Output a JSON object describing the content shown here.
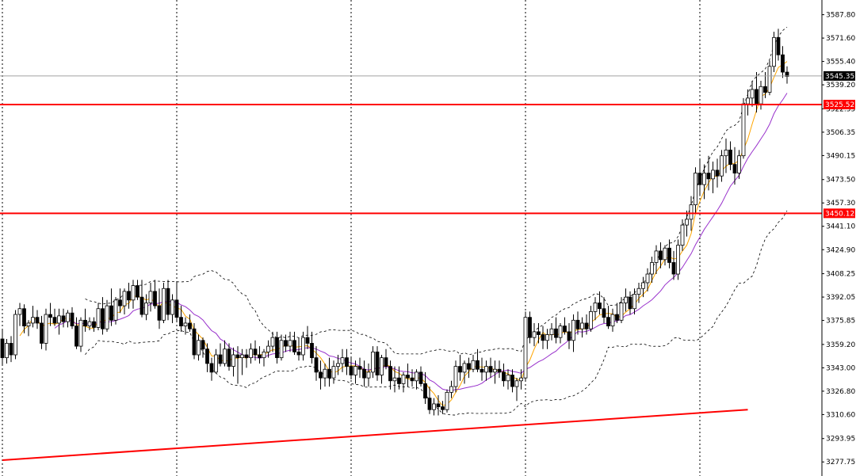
{
  "chart_data": {
    "type": "candlestick",
    "title": "",
    "xlabel": "",
    "ylabel": "",
    "ylim": [
      3268,
      3598
    ],
    "y_ticks": [
      "3587.80",
      "3571.60",
      "3555.40",
      "3539.20",
      "3522.55",
      "3506.35",
      "3490.15",
      "3473.50",
      "3457.30",
      "3441.10",
      "3424.90",
      "3408.25",
      "3392.05",
      "3375.85",
      "3359.20",
      "3343.00",
      "3326.80",
      "3310.60",
      "3293.95",
      "3277.75"
    ],
    "current_price": {
      "value": 3545.35,
      "label": "3545.35",
      "color": "#000000"
    },
    "horizontal_levels": [
      {
        "value": 3525.52,
        "label": "3525.52",
        "color": "#ff0000"
      },
      {
        "value": 3450.12,
        "label": "3450.12",
        "color": "#ff0000"
      }
    ],
    "trendline": {
      "start": {
        "bar": 0,
        "price": 3279
      },
      "end": {
        "bar": 171,
        "price": 3314
      },
      "color": "#ff0000"
    },
    "vertical_separators_at_bars": [
      0,
      40,
      80,
      120,
      160
    ],
    "colors": {
      "up": "#ffffff",
      "down": "#000000",
      "wick": "#000000",
      "ma_fast": "#ffa500",
      "ma_slow": "#9932cc",
      "bands": "#000000"
    },
    "candles_ohlc": [
      [
        3363,
        3369,
        3345,
        3350
      ],
      [
        3350,
        3363,
        3346,
        3360
      ],
      [
        3360,
        3365,
        3347,
        3352
      ],
      [
        3352,
        3383,
        3349,
        3380
      ],
      [
        3380,
        3388,
        3372,
        3384
      ],
      [
        3384,
        3387,
        3367,
        3372
      ],
      [
        3372,
        3376,
        3365,
        3374
      ],
      [
        3374,
        3386,
        3371,
        3378
      ],
      [
        3378,
        3383,
        3370,
        3374
      ],
      [
        3374,
        3379,
        3356,
        3360
      ],
      [
        3360,
        3384,
        3355,
        3380
      ],
      [
        3380,
        3388,
        3372,
        3378
      ],
      [
        3378,
        3384,
        3372,
        3374
      ],
      [
        3374,
        3384,
        3366,
        3379
      ],
      [
        3379,
        3384,
        3371,
        3375
      ],
      [
        3375,
        3383,
        3371,
        3381
      ],
      [
        3381,
        3385,
        3370,
        3372
      ],
      [
        3372,
        3378,
        3356,
        3358
      ],
      [
        3358,
        3378,
        3354,
        3376
      ],
      [
        3376,
        3384,
        3368,
        3372
      ],
      [
        3372,
        3378,
        3369,
        3375
      ],
      [
        3375,
        3378,
        3368,
        3371
      ],
      [
        3371,
        3388,
        3369,
        3384
      ],
      [
        3384,
        3392,
        3366,
        3370
      ],
      [
        3370,
        3390,
        3368,
        3386
      ],
      [
        3386,
        3398,
        3372,
        3376
      ],
      [
        3376,
        3392,
        3373,
        3390
      ],
      [
        3390,
        3398,
        3381,
        3386
      ],
      [
        3386,
        3398,
        3380,
        3396
      ],
      [
        3396,
        3402,
        3384,
        3390
      ],
      [
        3390,
        3404,
        3384,
        3400
      ],
      [
        3400,
        3404,
        3390,
        3392
      ],
      [
        3392,
        3404,
        3378,
        3380
      ],
      [
        3380,
        3394,
        3376,
        3388
      ],
      [
        3388,
        3402,
        3382,
        3396
      ],
      [
        3396,
        3404,
        3384,
        3386
      ],
      [
        3386,
        3398,
        3370,
        3376
      ],
      [
        3376,
        3402,
        3374,
        3398
      ],
      [
        3398,
        3404,
        3376,
        3380
      ],
      [
        3380,
        3394,
        3374,
        3390
      ],
      [
        3390,
        3402,
        3375,
        3378
      ],
      [
        3378,
        3386,
        3368,
        3372
      ],
      [
        3372,
        3378,
        3366,
        3374
      ],
      [
        3374,
        3380,
        3368,
        3370
      ],
      [
        3370,
        3374,
        3349,
        3352
      ],
      [
        3352,
        3366,
        3348,
        3362
      ],
      [
        3362,
        3364,
        3350,
        3356
      ],
      [
        3356,
        3360,
        3340,
        3346
      ],
      [
        3346,
        3350,
        3334,
        3340
      ],
      [
        3340,
        3356,
        3339,
        3352
      ],
      [
        3352,
        3360,
        3344,
        3346
      ],
      [
        3346,
        3362,
        3344,
        3356
      ],
      [
        3356,
        3360,
        3341,
        3344
      ],
      [
        3344,
        3357,
        3337,
        3352
      ],
      [
        3352,
        3358,
        3332,
        3350
      ],
      [
        3350,
        3356,
        3338,
        3352
      ],
      [
        3352,
        3356,
        3343,
        3350
      ],
      [
        3350,
        3360,
        3346,
        3356
      ],
      [
        3356,
        3362,
        3348,
        3352
      ],
      [
        3352,
        3358,
        3346,
        3350
      ],
      [
        3350,
        3356,
        3344,
        3354
      ],
      [
        3354,
        3362,
        3350,
        3358
      ],
      [
        3358,
        3368,
        3354,
        3364
      ],
      [
        3364,
        3368,
        3346,
        3350
      ],
      [
        3350,
        3366,
        3348,
        3362
      ],
      [
        3362,
        3366,
        3354,
        3358
      ],
      [
        3358,
        3368,
        3354,
        3362
      ],
      [
        3362,
        3368,
        3352,
        3354
      ],
      [
        3354,
        3364,
        3348,
        3352
      ],
      [
        3352,
        3368,
        3348,
        3364
      ],
      [
        3364,
        3372,
        3356,
        3360
      ],
      [
        3360,
        3368,
        3346,
        3350
      ],
      [
        3350,
        3358,
        3334,
        3340
      ],
      [
        3340,
        3348,
        3328,
        3336
      ],
      [
        3336,
        3346,
        3330,
        3342
      ],
      [
        3342,
        3350,
        3330,
        3336
      ],
      [
        3336,
        3348,
        3332,
        3344
      ],
      [
        3344,
        3352,
        3338,
        3346
      ],
      [
        3346,
        3356,
        3340,
        3350
      ],
      [
        3350,
        3356,
        3338,
        3344
      ],
      [
        3344,
        3350,
        3335,
        3338
      ],
      [
        3338,
        3348,
        3332,
        3344
      ],
      [
        3344,
        3350,
        3336,
        3342
      ],
      [
        3342,
        3348,
        3330,
        3336
      ],
      [
        3336,
        3346,
        3330,
        3340
      ],
      [
        3340,
        3358,
        3336,
        3354
      ],
      [
        3354,
        3358,
        3334,
        3338
      ],
      [
        3338,
        3352,
        3332,
        3350
      ],
      [
        3350,
        3356,
        3342,
        3344
      ],
      [
        3344,
        3348,
        3328,
        3334
      ],
      [
        3334,
        3344,
        3326,
        3336
      ],
      [
        3336,
        3344,
        3328,
        3332
      ],
      [
        3332,
        3340,
        3326,
        3338
      ],
      [
        3338,
        3346,
        3330,
        3336
      ],
      [
        3336,
        3342,
        3330,
        3334
      ],
      [
        3334,
        3342,
        3328,
        3340
      ],
      [
        3340,
        3344,
        3330,
        3332
      ],
      [
        3332,
        3340,
        3318,
        3322
      ],
      [
        3322,
        3330,
        3311,
        3314
      ],
      [
        3314,
        3322,
        3310,
        3318
      ],
      [
        3318,
        3324,
        3310,
        3316
      ],
      [
        3316,
        3320,
        3311,
        3314
      ],
      [
        3314,
        3328,
        3312,
        3326
      ],
      [
        3326,
        3334,
        3322,
        3330
      ],
      [
        3330,
        3348,
        3326,
        3344
      ],
      [
        3344,
        3352,
        3334,
        3340
      ],
      [
        3340,
        3348,
        3332,
        3346
      ],
      [
        3346,
        3350,
        3336,
        3342
      ],
      [
        3342,
        3352,
        3340,
        3348
      ],
      [
        3348,
        3356,
        3340,
        3342
      ],
      [
        3342,
        3350,
        3334,
        3340
      ],
      [
        3340,
        3348,
        3334,
        3344
      ],
      [
        3344,
        3350,
        3336,
        3340
      ],
      [
        3340,
        3348,
        3332,
        3342
      ],
      [
        3342,
        3348,
        3336,
        3340
      ],
      [
        3340,
        3346,
        3330,
        3334
      ],
      [
        3334,
        3342,
        3328,
        3338
      ],
      [
        3338,
        3342,
        3326,
        3330
      ],
      [
        3330,
        3336,
        3320,
        3334
      ],
      [
        3334,
        3342,
        3328,
        3336
      ],
      [
        3336,
        3382,
        3334,
        3378
      ],
      [
        3378,
        3382,
        3360,
        3364
      ],
      [
        3364,
        3374,
        3358,
        3368
      ],
      [
        3368,
        3374,
        3360,
        3366
      ],
      [
        3366,
        3372,
        3356,
        3362
      ],
      [
        3362,
        3370,
        3356,
        3366
      ],
      [
        3366,
        3374,
        3362,
        3370
      ],
      [
        3370,
        3378,
        3360,
        3364
      ],
      [
        3364,
        3374,
        3360,
        3372
      ],
      [
        3372,
        3378,
        3366,
        3368
      ],
      [
        3368,
        3374,
        3356,
        3362
      ],
      [
        3362,
        3380,
        3354,
        3376
      ],
      [
        3376,
        3382,
        3366,
        3370
      ],
      [
        3370,
        3378,
        3364,
        3374
      ],
      [
        3374,
        3380,
        3366,
        3370
      ],
      [
        3370,
        3386,
        3368,
        3382
      ],
      [
        3382,
        3392,
        3376,
        3388
      ],
      [
        3388,
        3396,
        3380,
        3384
      ],
      [
        3384,
        3392,
        3374,
        3378
      ],
      [
        3378,
        3386,
        3370,
        3372
      ],
      [
        3372,
        3384,
        3368,
        3380
      ],
      [
        3380,
        3388,
        3374,
        3376
      ],
      [
        3376,
        3392,
        3374,
        3388
      ],
      [
        3388,
        3398,
        3382,
        3392
      ],
      [
        3392,
        3396,
        3380,
        3384
      ],
      [
        3384,
        3398,
        3380,
        3394
      ],
      [
        3394,
        3402,
        3388,
        3398
      ],
      [
        3398,
        3406,
        3392,
        3402
      ],
      [
        3402,
        3412,
        3396,
        3408
      ],
      [
        3408,
        3420,
        3402,
        3416
      ],
      [
        3416,
        3428,
        3408,
        3424
      ],
      [
        3424,
        3430,
        3412,
        3418
      ],
      [
        3418,
        3428,
        3414,
        3426
      ],
      [
        3426,
        3432,
        3412,
        3416
      ],
      [
        3416,
        3424,
        3404,
        3408
      ],
      [
        3408,
        3432,
        3404,
        3428
      ],
      [
        3428,
        3446,
        3424,
        3442
      ],
      [
        3442,
        3452,
        3434,
        3446
      ],
      [
        3446,
        3462,
        3438,
        3456
      ],
      [
        3456,
        3482,
        3450,
        3478
      ],
      [
        3478,
        3488,
        3462,
        3470
      ],
      [
        3470,
        3484,
        3460,
        3478
      ],
      [
        3478,
        3490,
        3466,
        3474
      ],
      [
        3474,
        3486,
        3464,
        3480
      ],
      [
        3480,
        3488,
        3468,
        3476
      ],
      [
        3476,
        3494,
        3472,
        3490
      ],
      [
        3490,
        3502,
        3478,
        3494
      ],
      [
        3494,
        3500,
        3480,
        3484
      ],
      [
        3484,
        3496,
        3470,
        3478
      ],
      [
        3478,
        3494,
        3474,
        3490
      ],
      [
        3490,
        3530,
        3488,
        3526
      ],
      [
        3526,
        3536,
        3518,
        3530
      ],
      [
        3530,
        3542,
        3524,
        3536
      ],
      [
        3536,
        3548,
        3520,
        3526
      ],
      [
        3526,
        3542,
        3522,
        3538
      ],
      [
        3538,
        3548,
        3530,
        3534
      ],
      [
        3534,
        3556,
        3532,
        3552
      ],
      [
        3552,
        3576,
        3548,
        3572
      ],
      [
        3572,
        3578,
        3556,
        3560
      ],
      [
        3560,
        3566,
        3544,
        3548
      ],
      [
        3548,
        3552,
        3540,
        3545
      ]
    ]
  }
}
